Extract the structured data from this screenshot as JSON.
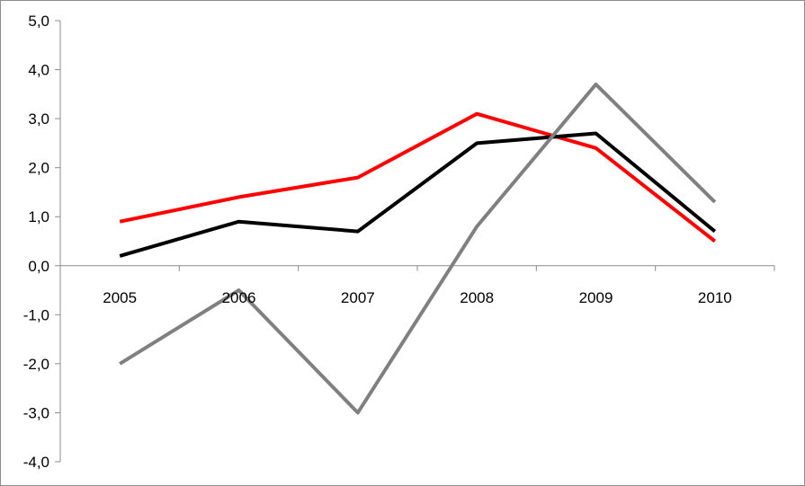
{
  "chart_data": {
    "type": "line",
    "title": "",
    "xlabel": "",
    "ylabel": "",
    "categories": [
      "2005",
      "2006",
      "2007",
      "2008",
      "2009",
      "2010"
    ],
    "ylim": [
      -4.0,
      5.0
    ],
    "yticks": [
      5.0,
      4.0,
      3.0,
      2.0,
      1.0,
      0.0,
      -1.0,
      -2.0,
      -3.0,
      -4.0
    ],
    "ytick_labels": [
      "5,0",
      "4,0",
      "3,0",
      "2,0",
      "1,0",
      "0,0",
      "-1,0",
      "-2,0",
      "-3,0",
      "-4,0"
    ],
    "grid": false,
    "legend": "none",
    "series": [
      {
        "color": "#ff0000",
        "values": [
          0.9,
          1.4,
          1.8,
          3.1,
          2.4,
          0.5
        ]
      },
      {
        "color": "#000000",
        "values": [
          0.2,
          0.9,
          0.7,
          2.5,
          2.7,
          0.7
        ]
      },
      {
        "color": "#808080",
        "values": [
          -2.0,
          -0.5,
          -3.0,
          0.8,
          3.7,
          1.3
        ]
      }
    ]
  }
}
